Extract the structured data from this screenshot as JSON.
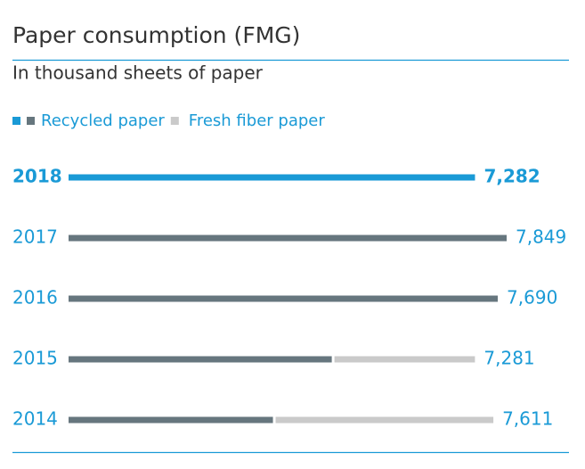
{
  "chart_data": {
    "type": "stacked-hbar",
    "title": "Paper consumption (FMG)",
    "subtitle": "In thousand sheets of paper",
    "categories": [
      "2018",
      "2017",
      "2016",
      "2015",
      "2014"
    ],
    "series": [
      {
        "name": "Recycled paper",
        "color": "#66767e",
        "highlight_color": "#1a9ad6",
        "values": [
          7282,
          7849,
          7690,
          4716,
          3662
        ]
      },
      {
        "name": "Fresh fiber paper",
        "color": "#cacaca",
        "values": [
          null,
          null,
          null,
          2565,
          3949
        ]
      }
    ],
    "totals": [
      7282,
      7849,
      7690,
      7281,
      7611
    ],
    "total_labels": [
      "7,282",
      "7,849",
      "7,690",
      "7,281",
      "7,611"
    ],
    "highlight": 0,
    "accent_color": "#1a9ad6"
  }
}
